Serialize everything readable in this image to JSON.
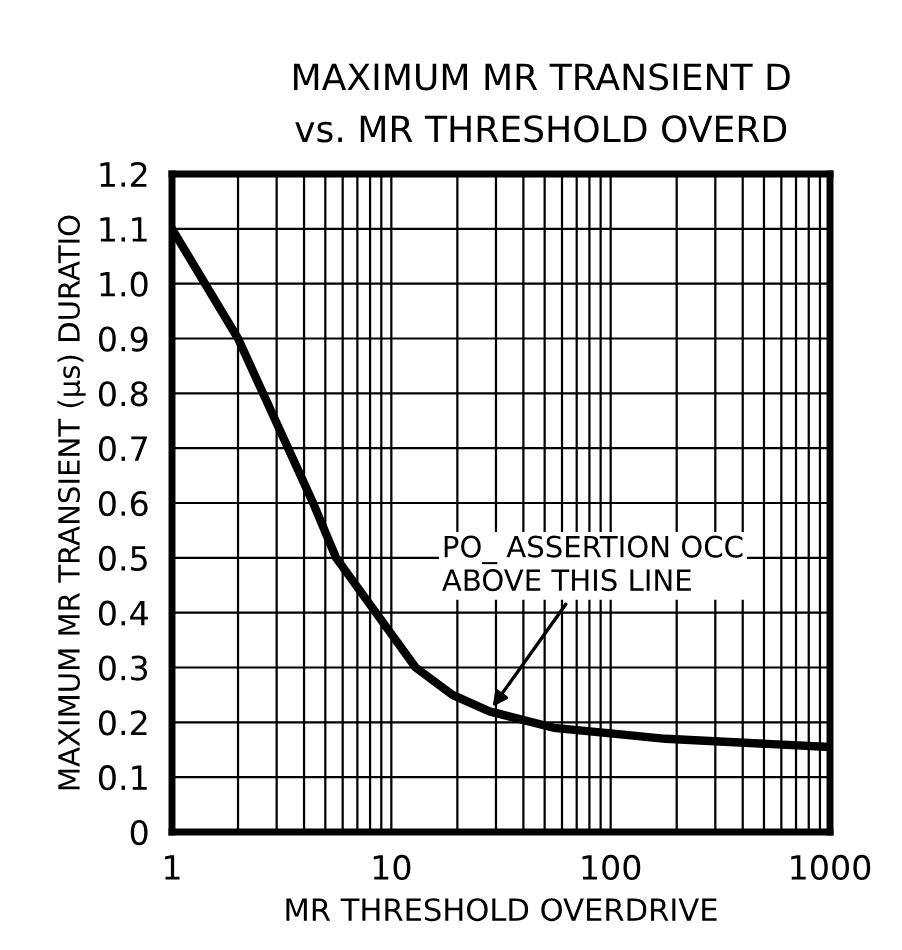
{
  "chart_data": {
    "type": "line",
    "title": "MAXIMUM MR TRANSIENT D",
    "subtitle": "vs. MR THRESHOLD OVERD",
    "xlabel": "MR THRESHOLD OVERDRIVE",
    "ylabel": "MAXIMUM MR TRANSIENT (µs) DURATIO",
    "log": "x",
    "grid": true,
    "line_style": "solid",
    "marker": "none",
    "xlim": [
      1,
      1000
    ],
    "ylim": [
      0,
      1.2
    ],
    "xticks": [
      1,
      {
        "value": 2,
        "label": null
      },
      {
        "value": 3,
        "label": null
      },
      {
        "value": 4,
        "label": null
      },
      {
        "value": 5,
        "label": null
      },
      {
        "value": 6,
        "label": null
      },
      {
        "value": 7,
        "label": null
      },
      {
        "value": 8,
        "label": null
      },
      {
        "value": 9,
        "label": null
      },
      10,
      {
        "value": 20,
        "label": null
      },
      {
        "value": 30,
        "label": null
      },
      {
        "value": 40,
        "label": null
      },
      {
        "value": 50,
        "label": null
      },
      {
        "value": 60,
        "label": null
      },
      {
        "value": 70,
        "label": null
      },
      {
        "value": 80,
        "label": null
      },
      {
        "value": 90,
        "label": null
      },
      100,
      {
        "value": 200,
        "label": null
      },
      {
        "value": 300,
        "label": null
      },
      {
        "value": 400,
        "label": null
      },
      {
        "value": 500,
        "label": null
      },
      {
        "value": 600,
        "label": null
      },
      {
        "value": 700,
        "label": null
      },
      {
        "value": 800,
        "label": null
      },
      {
        "value": 900,
        "label": null
      },
      1000
    ],
    "yticks": [
      0,
      0.1,
      0.2,
      0.3,
      0.4,
      0.5,
      0.6,
      0.7,
      0.8,
      0.9,
      {
        "value": 1,
        "label": "1.0"
      },
      1.1,
      1.2
    ],
    "series": [
      {
        "color": "#000000",
        "x": [
          1,
          2,
          4.4,
          5.6,
          8.5,
          12.9,
          19,
          28,
          55,
          100,
          178,
          1000
        ],
        "values": [
          1.1,
          0.9,
          0.6,
          0.5,
          0.4,
          0.3,
          0.25,
          0.22,
          0.19,
          0.18,
          0.17,
          0.155
        ]
      }
    ],
    "annotations": [
      {
        "text": "PO_ ASSERTION OCC\nABOVE THIS LINE",
        "x": 28,
        "y": 0.22
      }
    ]
  }
}
